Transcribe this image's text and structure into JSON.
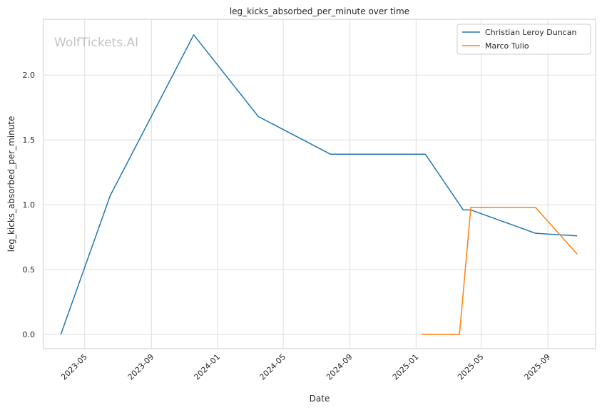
{
  "chart_data": {
    "type": "line",
    "title": "leg_kicks_absorbed_per_minute over time",
    "xlabel": "Date",
    "ylabel": "leg_kicks_absorbed_per_minute",
    "watermark": "WolfTickets.AI",
    "x_ticks": [
      "2023-05",
      "2023-09",
      "2024-01",
      "2024-05",
      "2024-09",
      "2025-01",
      "2025-05",
      "2025-09"
    ],
    "y_ticks": [
      "0.0",
      "0.5",
      "1.0",
      "1.5",
      "2.0"
    ],
    "xlim": [
      "2023-02-14",
      "2025-11-28"
    ],
    "ylim": [
      -0.11,
      2.43
    ],
    "grid": true,
    "legend_position": "top-right",
    "series": [
      {
        "name": "Christian Leroy Duncan",
        "color": "#1f77b4",
        "points": [
          {
            "x": "2023-03-18",
            "y": 0.0
          },
          {
            "x": "2023-06-17",
            "y": 1.07
          },
          {
            "x": "2023-11-18",
            "y": 2.31
          },
          {
            "x": "2024-03-16",
            "y": 1.68
          },
          {
            "x": "2024-07-27",
            "y": 1.39
          },
          {
            "x": "2025-01-18",
            "y": 1.39
          },
          {
            "x": "2025-03-29",
            "y": 0.96
          },
          {
            "x": "2025-04-12",
            "y": 0.96
          },
          {
            "x": "2025-08-09",
            "y": 0.78
          },
          {
            "x": "2025-10-25",
            "y": 0.76
          }
        ]
      },
      {
        "name": "Marco Tulio",
        "color": "#ff7f0e",
        "points": [
          {
            "x": "2025-01-11",
            "y": 0.0
          },
          {
            "x": "2025-03-22",
            "y": 0.0
          },
          {
            "x": "2025-04-12",
            "y": 0.98
          },
          {
            "x": "2025-08-09",
            "y": 0.98
          },
          {
            "x": "2025-10-25",
            "y": 0.62
          }
        ]
      }
    ]
  }
}
